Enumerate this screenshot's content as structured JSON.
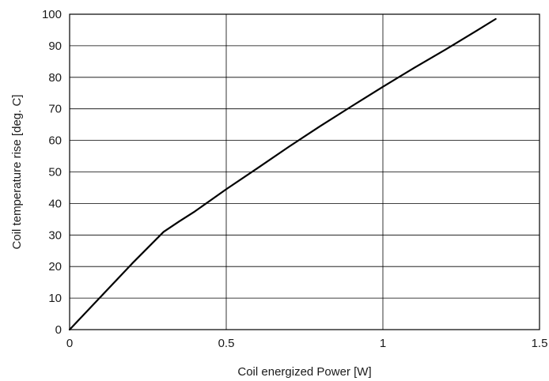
{
  "chart_data": {
    "type": "line",
    "title": "",
    "xlabel": "Coil energized Power [W]",
    "ylabel": "Coil temperature rise [deg. C]",
    "xlim": [
      0,
      1.5
    ],
    "ylim": [
      0,
      100
    ],
    "x_ticks": [
      0,
      0.5,
      1,
      1.5
    ],
    "x_tick_labels": [
      "0",
      "0.5",
      "1",
      "1.5"
    ],
    "y_ticks": [
      0,
      10,
      20,
      30,
      40,
      50,
      60,
      70,
      80,
      90,
      100
    ],
    "y_tick_labels": [
      "0",
      "10",
      "20",
      "30",
      "40",
      "50",
      "60",
      "70",
      "80",
      "90",
      "100"
    ],
    "grid": true,
    "legend": "none",
    "series": [
      {
        "color": "#000000",
        "x": [
          0,
          0.1,
          0.2,
          0.3,
          0.35,
          0.4,
          0.5,
          0.6,
          0.7,
          0.8,
          0.9,
          1.0,
          1.1,
          1.2,
          1.3,
          1.36
        ],
        "y": [
          0,
          10.5,
          21,
          31,
          34.3,
          37.5,
          44.5,
          51.2,
          58,
          64.5,
          70.8,
          77,
          83,
          88.8,
          94.8,
          98.5
        ]
      }
    ]
  }
}
